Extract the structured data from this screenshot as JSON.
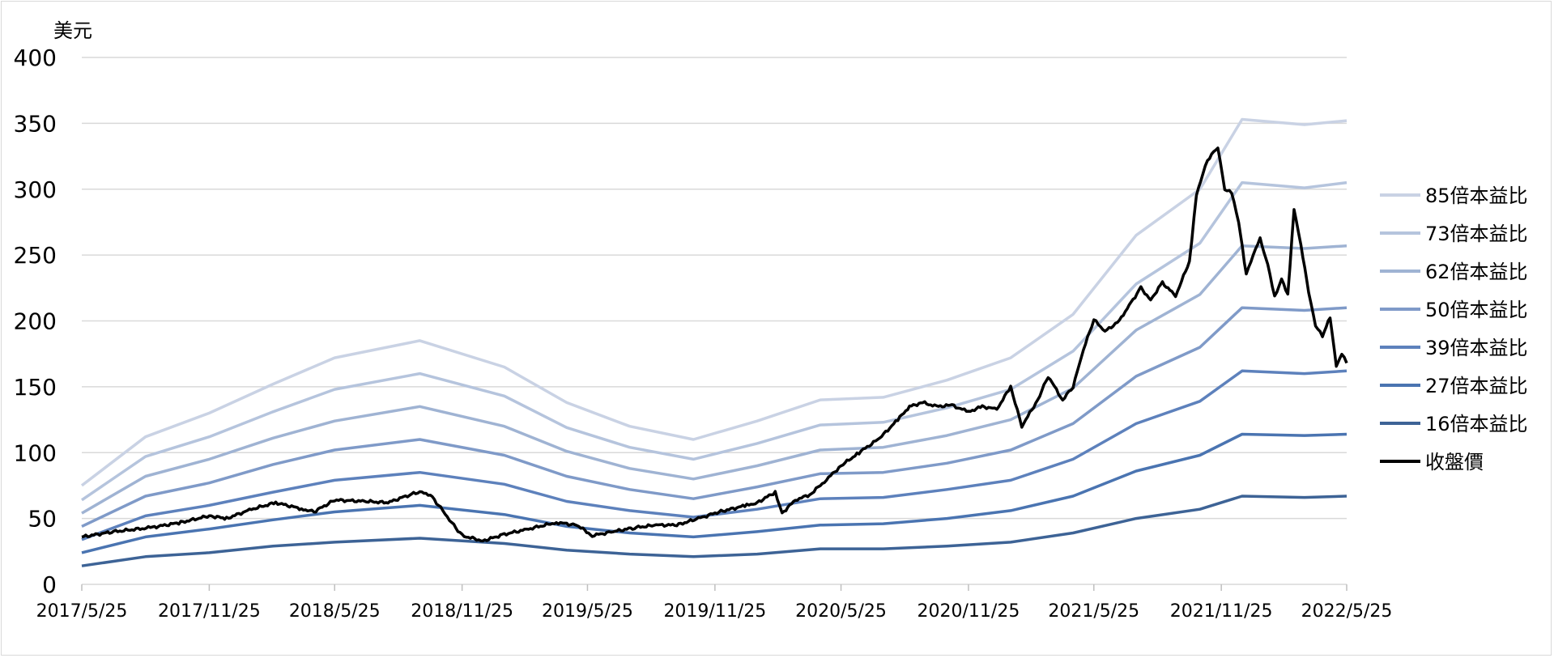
{
  "chart_data": {
    "type": "line",
    "ylabel": "美元",
    "ylim": [
      0,
      400
    ],
    "yticks": [
      "0",
      "50",
      "100",
      "150",
      "200",
      "250",
      "300",
      "350",
      "400"
    ],
    "xlim": [
      "2017/5/25",
      "2022/5/25"
    ],
    "xticks": [
      "2017/5/25",
      "2017/11/25",
      "2018/5/25",
      "2018/11/25",
      "2019/5/25",
      "2019/11/25",
      "2020/5/25",
      "2020/11/25",
      "2021/5/25",
      "2021/11/25",
      "2022/5/25"
    ],
    "grid": "horizontal",
    "legend_position": "right",
    "band_dates": [
      "2017/5/25",
      "2017/8/25",
      "2017/11/25",
      "2018/2/25",
      "2018/5/25",
      "2018/9/25",
      "2019/1/25",
      "2019/4/25",
      "2019/7/25",
      "2019/10/25",
      "2020/1/25",
      "2020/4/25",
      "2020/7/25",
      "2020/10/25",
      "2021/1/25",
      "2021/4/25",
      "2021/7/25",
      "2021/10/25",
      "2021/12/25",
      "2022/3/25",
      "2022/5/25"
    ],
    "series": [
      {
        "name": "85倍本益比",
        "color": "#c9d2e4",
        "values": [
          75,
          112,
          130,
          152,
          172,
          185,
          165,
          138,
          120,
          110,
          124,
          140,
          142,
          155,
          172,
          205,
          265,
          300,
          353,
          349,
          352
        ]
      },
      {
        "name": "73倍本益比",
        "color": "#b5c4dd",
        "values": [
          64,
          97,
          112,
          131,
          148,
          160,
          143,
          119,
          104,
          95,
          107,
          121,
          123,
          134,
          148,
          177,
          228,
          259,
          305,
          301,
          305
        ]
      },
      {
        "name": "62倍本益比",
        "color": "#9fb3d3",
        "values": [
          54,
          82,
          95,
          111,
          124,
          135,
          120,
          101,
          88,
          80,
          90,
          102,
          104,
          113,
          125,
          149,
          193,
          220,
          257,
          255,
          257
        ]
      },
      {
        "name": "50倍本益比",
        "color": "#7f9ac8",
        "values": [
          44,
          67,
          77,
          91,
          102,
          110,
          98,
          82,
          72,
          65,
          74,
          84,
          85,
          92,
          102,
          122,
          158,
          180,
          210,
          208,
          210
        ]
      },
      {
        "name": "39倍本益比",
        "color": "#5d81bc",
        "values": [
          34,
          52,
          60,
          70,
          79,
          85,
          76,
          63,
          56,
          51,
          57,
          65,
          66,
          72,
          79,
          95,
          122,
          139,
          162,
          160,
          162
        ]
      },
      {
        "name": "27倍本益比",
        "color": "#4a74b1",
        "values": [
          24,
          36,
          42,
          49,
          55,
          60,
          53,
          44,
          39,
          36,
          40,
          45,
          46,
          50,
          56,
          67,
          86,
          98,
          114,
          113,
          114
        ]
      },
      {
        "name": "16倍本益比",
        "color": "#3d6396",
        "values": [
          14,
          21,
          24,
          29,
          32,
          35,
          31,
          26,
          23,
          21,
          23,
          27,
          27,
          29,
          32,
          39,
          50,
          57,
          67,
          66,
          67
        ]
      }
    ],
    "price": {
      "name": "收盤價",
      "color": "#000000",
      "dates": [
        "2017/5/25",
        "2017/7/10",
        "2017/9/1",
        "2017/10/15",
        "2017/11/25",
        "2017/12/20",
        "2018/1/25",
        "2018/3/1",
        "2018/4/10",
        "2018/4/25",
        "2018/5/25",
        "2018/7/10",
        "2018/8/10",
        "2018/9/10",
        "2018/9/25",
        "2018/10/10",
        "2018/10/25",
        "2018/11/10",
        "2018/11/25",
        "2018/12/25",
        "2019/1/25",
        "2019/3/1",
        "2019/4/10",
        "2019/5/10",
        "2019/6/1",
        "2019/7/1",
        "2019/8/1",
        "2019/9/1",
        "2019/10/1",
        "2019/11/1",
        "2019/12/1",
        "2020/1/10",
        "2020/1/25",
        "2020/2/20",
        "2020/3/1",
        "2020/3/20",
        "2020/4/10",
        "2020/5/1",
        "2020/5/25",
        "2020/6/20",
        "2020/7/20",
        "2020/8/15",
        "2020/9/1",
        "2020/9/20",
        "2020/10/10",
        "2020/11/1",
        "2020/11/25",
        "2020/12/15",
        "2021/1/5",
        "2021/1/25",
        "2021/2/10",
        "2021/3/5",
        "2021/3/20",
        "2021/4/10",
        "2021/4/25",
        "2021/5/10",
        "2021/5/25",
        "2021/6/10",
        "2021/7/1",
        "2021/7/15",
        "2021/8/1",
        "2021/8/15",
        "2021/9/1",
        "2021/9/20",
        "2021/10/10",
        "2021/10/20",
        "2021/11/5",
        "2021/11/20",
        "2021/11/30",
        "2021/12/10",
        "2021/12/20",
        "2021/12/31",
        "2022/1/10",
        "2022/1/20",
        "2022/1/31",
        "2022/2/10",
        "2022/2/20",
        "2022/3/1",
        "2022/3/10",
        "2022/3/20",
        "2022/3/31",
        "2022/4/10",
        "2022/4/20",
        "2022/5/1",
        "2022/5/10",
        "2022/5/18",
        "2022/5/25"
      ],
      "values": [
        36,
        40,
        43,
        47,
        52,
        50,
        57,
        62,
        57,
        55,
        64,
        63,
        62,
        68,
        70,
        68,
        58,
        47,
        37,
        33,
        38,
        42,
        47,
        45,
        37,
        40,
        43,
        45,
        45,
        50,
        55,
        60,
        62,
        70,
        54,
        64,
        68,
        78,
        90,
        100,
        111,
        125,
        135,
        138,
        135,
        136,
        131,
        135,
        133,
        150,
        120,
        140,
        158,
        140,
        150,
        178,
        201,
        192,
        200,
        212,
        225,
        216,
        229,
        219,
        245,
        296,
        322,
        332,
        300,
        297,
        275,
        235,
        250,
        262,
        243,
        218,
        232,
        220,
        285,
        258,
        222,
        197,
        188,
        203,
        165,
        175,
        168
      ]
    }
  }
}
